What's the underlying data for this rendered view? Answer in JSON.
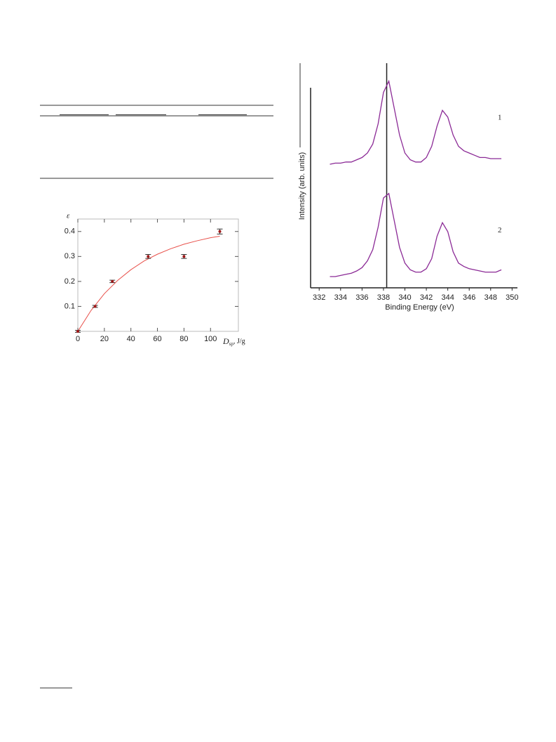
{
  "chart_data": [
    {
      "type": "scatter",
      "ylabel": "ε",
      "xlabel": "D",
      "xlabel_sub": "sp",
      "xlabel_unit": ", J/g",
      "x": [
        0,
        13,
        26,
        53,
        80,
        107
      ],
      "values": [
        0,
        0.1,
        0.2,
        0.3,
        0.3,
        0.4
      ],
      "errors": [
        0.004,
        0.004,
        0.005,
        0.008,
        0.008,
        0.01
      ],
      "color": "#a01818",
      "fit": {
        "x": [
          0,
          10,
          20,
          30,
          40,
          50,
          60,
          70,
          80,
          90,
          100,
          107
        ],
        "values": [
          0,
          0.084,
          0.151,
          0.204,
          0.247,
          0.282,
          0.309,
          0.331,
          0.349,
          0.363,
          0.375,
          0.381
        ],
        "color": "#e8504a"
      },
      "xlim": [
        0,
        121
      ],
      "ylim": [
        0,
        0.45
      ],
      "xticks": [
        0,
        20,
        40,
        60,
        80,
        100
      ],
      "yticks": [
        0.1,
        0.2,
        0.3,
        0.4
      ]
    },
    {
      "type": "line",
      "xlabel": "Binding Energy (eV)",
      "ylabel": "Intensity (arb. units)",
      "x": [
        333,
        333.5,
        334,
        334.5,
        335,
        335.5,
        336,
        336.5,
        337,
        337.5,
        338,
        338.5,
        339,
        339.5,
        340,
        340.5,
        341,
        341.5,
        342,
        342.5,
        343,
        343.5,
        344,
        344.5,
        345,
        345.5,
        346,
        346.5,
        347,
        347.5,
        348,
        348.5,
        349
      ],
      "series": [
        {
          "name": "1",
          "color": "#8b2a96",
          "values": [
            55,
            55.5,
            55.5,
            56,
            56,
            57,
            58,
            60,
            64,
            73,
            87,
            92,
            80,
            68,
            60,
            57,
            56,
            56,
            58,
            63,
            72,
            79,
            76,
            68,
            63,
            61,
            60,
            59,
            58,
            58,
            57.5,
            57.5,
            57.5
          ]
        },
        {
          "name": "2",
          "color": "#8b2a96",
          "values": [
            5,
            5,
            5.5,
            6,
            6.5,
            7.5,
            9,
            12,
            17,
            27,
            40,
            42,
            30,
            18,
            11,
            8,
            7,
            7,
            8.5,
            13,
            23,
            29,
            25,
            16,
            11,
            9.5,
            8.5,
            8,
            7.5,
            7,
            7,
            7,
            8
          ]
        }
      ],
      "vline": 338.3,
      "xlim": [
        331.2,
        350.5
      ],
      "ylim": [
        0,
        100
      ],
      "xticks": [
        332,
        334,
        336,
        338,
        340,
        342,
        344,
        346,
        348,
        350
      ]
    }
  ]
}
